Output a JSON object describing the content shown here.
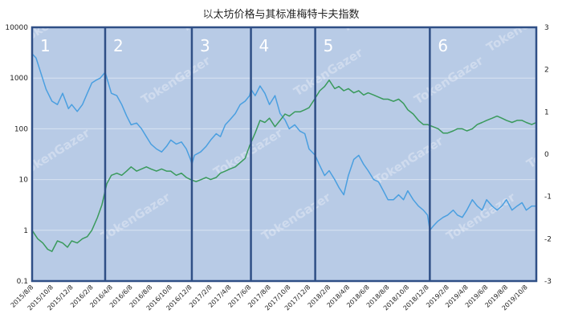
{
  "chart_data": {
    "type": "line",
    "title": "以太坊价格与其标准梅特卡夫指数",
    "left_axis": {
      "scale": "log",
      "range": [
        0.1,
        10000
      ],
      "ticks": [
        "0.1",
        "1",
        "10",
        "100",
        "1000",
        "10000"
      ]
    },
    "right_axis": {
      "range": [
        -3,
        3
      ],
      "ticks": [
        "-3",
        "-2",
        "-1",
        "0",
        "1",
        "2",
        "3"
      ]
    },
    "x_ticks": [
      "2015/8/8",
      "2015/10/8",
      "2015/12/8",
      "2016/2/8",
      "2016/4/8",
      "2016/6/8",
      "2016/8/8",
      "2016/10/8",
      "2016/12/8",
      "2017/2/8",
      "2017/4/8",
      "2017/6/8",
      "2017/8/8",
      "2017/10/8",
      "2017/12/8",
      "2018/2/8",
      "2018/4/8",
      "2018/6/8",
      "2018/8/8",
      "2018/10/8",
      "2018/12/8",
      "2019/2/8",
      "2019/4/8",
      "2019/6/8",
      "2019/8/8",
      "2019/10/8"
    ],
    "segments": [
      "1",
      "2",
      "3",
      "4",
      "5",
      "6"
    ],
    "segment_boundaries": [
      "2016/3/20",
      "2016/12/12",
      "2017/6/12",
      "2017/12/27",
      "2018/12/15"
    ],
    "grid": true,
    "watermark": "TokenGazer",
    "colors": {
      "blue_series": "#4a9fe0",
      "green_series": "#3a9a5c",
      "panel": "#b8cbe6",
      "divider": "#2f4f86"
    },
    "series": [
      {
        "axis": "left",
        "color": "#4a9fe0",
        "x": [
          "2015/8/8",
          "2015/8/20",
          "2015/9/5",
          "2015/9/20",
          "2015/10/8",
          "2015/10/25",
          "2015/11/10",
          "2015/11/28",
          "2015/12/8",
          "2015/12/25",
          "2016/1/10",
          "2016/1/25",
          "2016/2/8",
          "2016/2/20",
          "2016/3/5",
          "2016/3/20",
          "2016/4/8",
          "2016/4/25",
          "2016/5/10",
          "2016/5/25",
          "2016/6/8",
          "2016/6/25",
          "2016/7/10",
          "2016/7/25",
          "2016/8/8",
          "2016/8/25",
          "2016/9/10",
          "2016/9/25",
          "2016/10/8",
          "2016/10/25",
          "2016/11/10",
          "2016/11/25",
          "2016/12/8",
          "2016/12/12",
          "2016/12/20",
          "2017/1/8",
          "2017/1/25",
          "2017/2/8",
          "2017/2/25",
          "2017/3/10",
          "2017/3/25",
          "2017/4/8",
          "2017/4/25",
          "2017/5/10",
          "2017/5/25",
          "2017/6/8",
          "2017/6/12",
          "2017/6/25",
          "2017/7/10",
          "2017/7/25",
          "2017/8/8",
          "2017/8/25",
          "2017/9/10",
          "2017/9/25",
          "2017/10/8",
          "2017/10/25",
          "2017/11/10",
          "2017/11/25",
          "2017/12/8",
          "2017/12/27",
          "2018/1/8",
          "2018/1/25",
          "2018/2/8",
          "2018/2/25",
          "2018/3/10",
          "2018/3/25",
          "2018/4/8",
          "2018/4/25",
          "2018/5/10",
          "2018/5/25",
          "2018/6/8",
          "2018/6/25",
          "2018/7/10",
          "2018/7/25",
          "2018/8/8",
          "2018/8/25",
          "2018/9/10",
          "2018/9/25",
          "2018/10/8",
          "2018/10/25",
          "2018/11/10",
          "2018/11/25",
          "2018/12/8",
          "2018/12/15",
          "2018/12/25",
          "2019/1/8",
          "2019/1/25",
          "2019/2/8",
          "2019/2/25",
          "2019/3/10",
          "2019/3/25",
          "2019/4/8",
          "2019/4/25",
          "2019/5/10",
          "2019/5/25",
          "2019/6/8",
          "2019/6/25",
          "2019/7/10",
          "2019/7/25",
          "2019/8/8",
          "2019/8/25",
          "2019/9/10",
          "2019/9/25",
          "2019/10/8",
          "2019/10/25",
          "2019/11/8"
        ],
        "values": [
          3000,
          2500,
          1200,
          600,
          350,
          300,
          500,
          250,
          300,
          220,
          300,
          500,
          800,
          900,
          1000,
          1300,
          500,
          450,
          300,
          180,
          120,
          130,
          100,
          70,
          50,
          40,
          35,
          45,
          60,
          50,
          55,
          40,
          25,
          20,
          30,
          35,
          45,
          60,
          80,
          70,
          120,
          150,
          200,
          300,
          350,
          450,
          600,
          450,
          700,
          500,
          300,
          450,
          200,
          150,
          100,
          120,
          90,
          80,
          40,
          30,
          20,
          12,
          15,
          10,
          7,
          5,
          12,
          25,
          30,
          20,
          15,
          10,
          9,
          6,
          4,
          4,
          5,
          4,
          6,
          4,
          3,
          2.5,
          2,
          1,
          1.2,
          1.5,
          1.8,
          2,
          2.5,
          2,
          1.8,
          2.5,
          4,
          3,
          2.5,
          4,
          3,
          2.5,
          3,
          4,
          2.5,
          3,
          3.5,
          2.5,
          3,
          3
        ]
      },
      {
        "axis": "right",
        "color": "#3a9a5c",
        "x": [
          "2015/8/8",
          "2015/8/25",
          "2015/9/10",
          "2015/9/25",
          "2015/10/8",
          "2015/10/25",
          "2015/11/10",
          "2015/11/25",
          "2015/12/8",
          "2015/12/25",
          "2016/1/10",
          "2016/1/25",
          "2016/2/8",
          "2016/2/25",
          "2016/3/10",
          "2016/3/25",
          "2016/4/8",
          "2016/4/25",
          "2016/5/10",
          "2016/5/25",
          "2016/6/8",
          "2016/6/25",
          "2016/7/10",
          "2016/7/25",
          "2016/8/8",
          "2016/8/25",
          "2016/9/10",
          "2016/9/25",
          "2016/10/8",
          "2016/10/25",
          "2016/11/10",
          "2016/11/25",
          "2016/12/8",
          "2016/12/25",
          "2017/1/10",
          "2017/1/25",
          "2017/2/8",
          "2017/2/25",
          "2017/3/10",
          "2017/3/25",
          "2017/4/8",
          "2017/4/25",
          "2017/5/10",
          "2017/5/25",
          "2017/6/8",
          "2017/6/25",
          "2017/7/10",
          "2017/7/25",
          "2017/8/8",
          "2017/8/25",
          "2017/9/10",
          "2017/9/25",
          "2017/10/8",
          "2017/10/25",
          "2017/11/10",
          "2017/11/25",
          "2017/12/8",
          "2017/12/25",
          "2018/1/10",
          "2018/1/25",
          "2018/2/8",
          "2018/2/25",
          "2018/3/10",
          "2018/3/25",
          "2018/4/8",
          "2018/4/25",
          "2018/5/10",
          "2018/5/25",
          "2018/6/8",
          "2018/6/25",
          "2018/7/10",
          "2018/7/25",
          "2018/8/8",
          "2018/8/25",
          "2018/9/10",
          "2018/9/25",
          "2018/10/8",
          "2018/10/25",
          "2018/11/10",
          "2018/11/25",
          "2018/12/8",
          "2018/12/25",
          "2019/1/10",
          "2019/1/25",
          "2019/2/8",
          "2019/2/25",
          "2019/3/10",
          "2019/3/25",
          "2019/4/8",
          "2019/4/25",
          "2019/5/10",
          "2019/5/25",
          "2019/6/8",
          "2019/6/25",
          "2019/7/10",
          "2019/7/25",
          "2019/8/8",
          "2019/8/25",
          "2019/9/10",
          "2019/9/25",
          "2019/10/8",
          "2019/10/25",
          "2019/11/8"
        ],
        "values": [
          -1.8,
          -2.0,
          -2.1,
          -2.25,
          -2.3,
          -2.05,
          -2.1,
          -2.2,
          -2.05,
          -2.1,
          -2.0,
          -1.95,
          -1.8,
          -1.5,
          -1.2,
          -0.7,
          -0.5,
          -0.45,
          -0.5,
          -0.4,
          -0.3,
          -0.4,
          -0.35,
          -0.3,
          -0.35,
          -0.4,
          -0.35,
          -0.4,
          -0.4,
          -0.5,
          -0.45,
          -0.55,
          -0.6,
          -0.65,
          -0.6,
          -0.55,
          -0.6,
          -0.55,
          -0.45,
          -0.4,
          -0.35,
          -0.3,
          -0.2,
          -0.1,
          0.2,
          0.5,
          0.8,
          0.75,
          0.85,
          0.65,
          0.8,
          0.95,
          0.9,
          1.0,
          1.0,
          1.05,
          1.1,
          1.3,
          1.5,
          1.6,
          1.75,
          1.55,
          1.6,
          1.5,
          1.55,
          1.45,
          1.5,
          1.4,
          1.45,
          1.4,
          1.35,
          1.3,
          1.3,
          1.25,
          1.3,
          1.2,
          1.05,
          0.95,
          0.8,
          0.7,
          0.7,
          0.65,
          0.6,
          0.5,
          0.5,
          0.55,
          0.6,
          0.6,
          0.55,
          0.6,
          0.7,
          0.75,
          0.8,
          0.85,
          0.9,
          0.85,
          0.8,
          0.75,
          0.8,
          0.8,
          0.75,
          0.7,
          0.75
        ]
      }
    ]
  }
}
